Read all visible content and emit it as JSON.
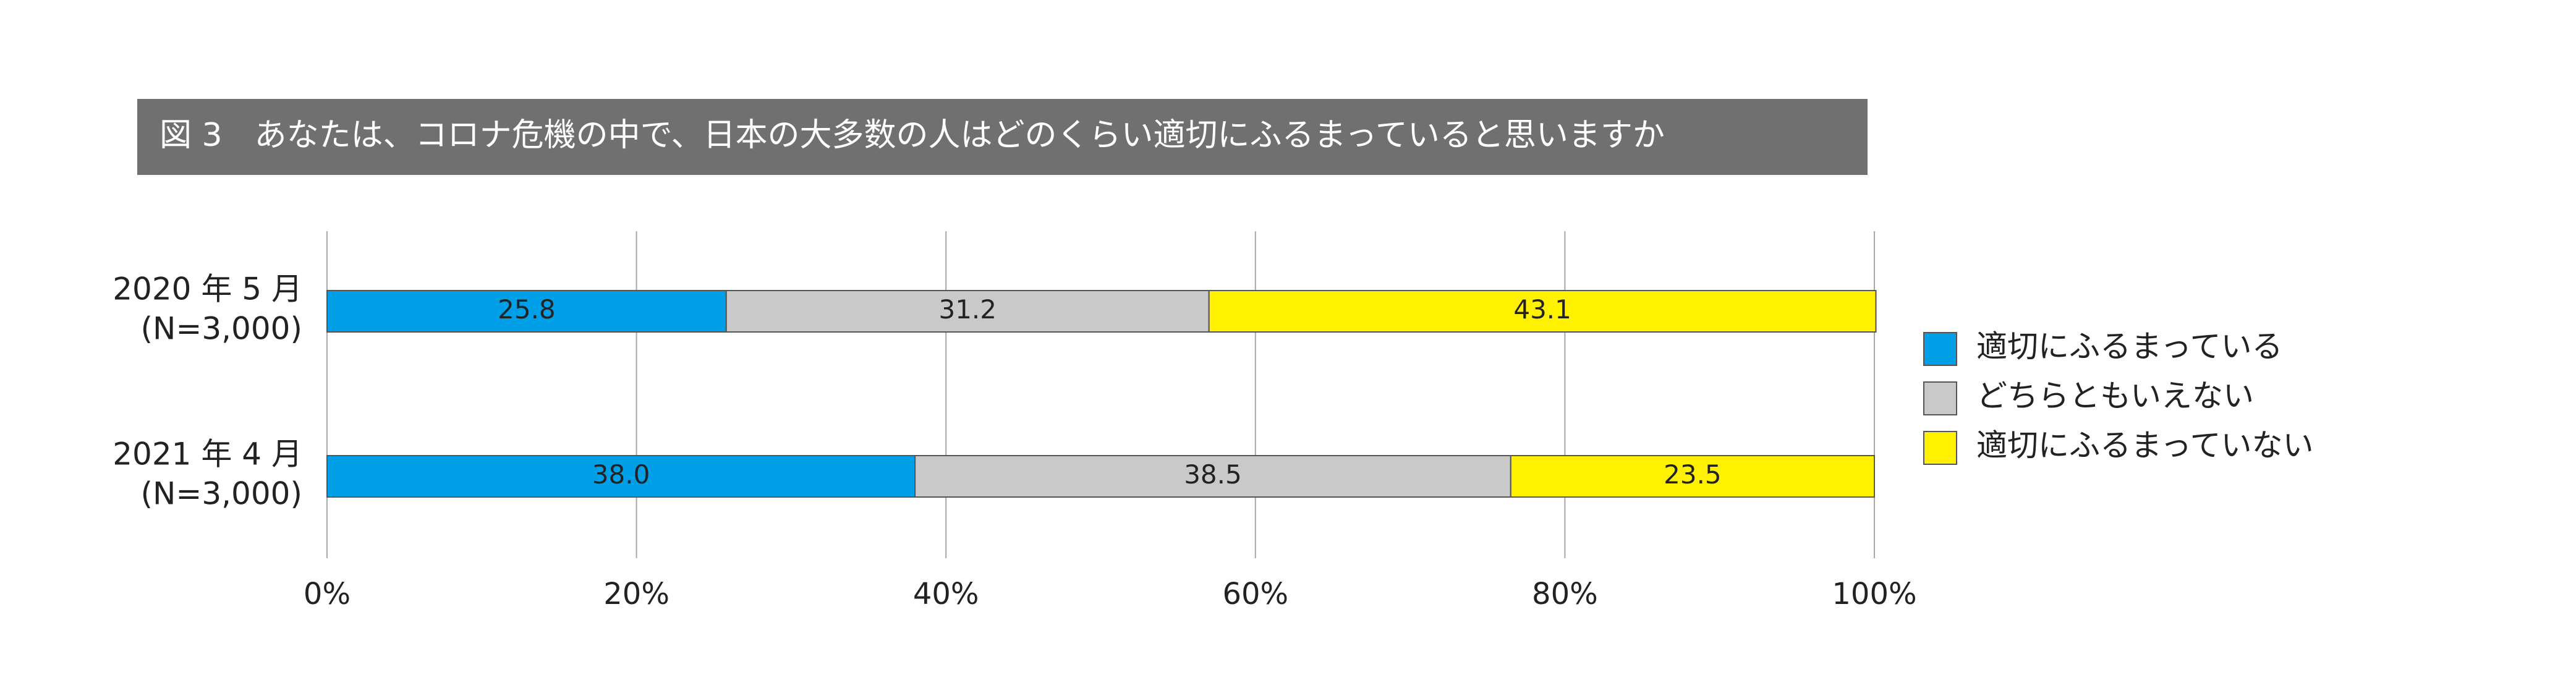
{
  "chart_data": {
    "type": "stacked-bar-horizontal",
    "title": "図 3　あなたは、コロナ危機の中で、日本の大多数の人はどのくらい適切にふるまっていると思いますか",
    "categories": [
      "2020 年 5 月",
      "2021 年 4 月"
    ],
    "category_sublabels": [
      "(N=3,000)",
      "(N=3,000)"
    ],
    "series": [
      {
        "name": "適切にふるまっている",
        "color": "#00a0e9",
        "values": [
          25.8,
          38.0
        ],
        "value_labels": [
          "25.8",
          "38.0"
        ]
      },
      {
        "name": "どちらともいえない",
        "color": "#c9c9c9",
        "values": [
          31.2,
          38.5
        ],
        "value_labels": [
          "31.2",
          "38.5"
        ]
      },
      {
        "name": "適切にふるまっていない",
        "color": "#fff100",
        "values": [
          43.1,
          23.5
        ],
        "value_labels": [
          "43.1",
          "23.5"
        ]
      }
    ],
    "xlim": [
      0,
      100
    ],
    "xticks": [
      {
        "value": 0,
        "label": "0%"
      },
      {
        "value": 20,
        "label": "20%"
      },
      {
        "value": 40,
        "label": "40%"
      },
      {
        "value": 60,
        "label": "60%"
      },
      {
        "value": 80,
        "label": "80%"
      },
      {
        "value": 100,
        "label": "100%"
      }
    ],
    "grid": true,
    "legend": "right"
  }
}
